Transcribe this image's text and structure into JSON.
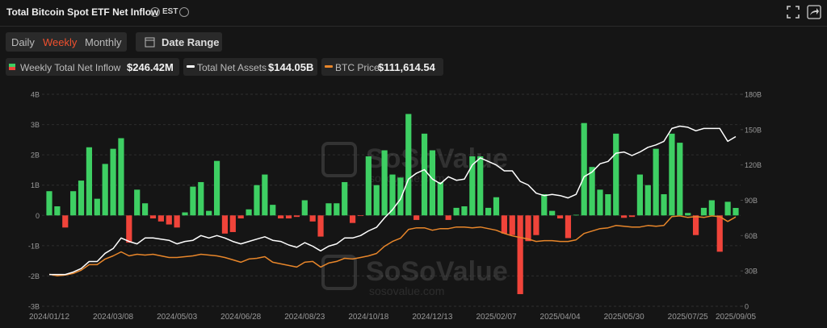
{
  "header": {
    "title": "Total Bitcoin Spot ETF Net Inflow",
    "timezone": "EST",
    "tabs": [
      "Daily",
      "Weekly",
      "Monthly"
    ],
    "active_tab": 1,
    "date_range": "Date Range"
  },
  "chart_data": {
    "type": "bar-line",
    "watermark": "SoSoValue",
    "watermark_url": "sosovalue.com",
    "categories": [
      "2024/01/12",
      null,
      null,
      null,
      null,
      null,
      null,
      null,
      "2024/03/08",
      null,
      null,
      null,
      null,
      null,
      null,
      null,
      "2024/05/03",
      null,
      null,
      null,
      null,
      null,
      null,
      null,
      "2024/06/28",
      null,
      null,
      null,
      null,
      null,
      null,
      null,
      "2024/08/23",
      null,
      null,
      null,
      null,
      null,
      null,
      null,
      "2024/10/18",
      null,
      null,
      null,
      null,
      null,
      null,
      null,
      "2024/12/13",
      null,
      null,
      null,
      null,
      null,
      null,
      null,
      "2025/02/07",
      null,
      null,
      null,
      null,
      null,
      null,
      null,
      "2025/04/04",
      null,
      null,
      null,
      null,
      null,
      null,
      null,
      "2025/05/30",
      null,
      null,
      null,
      null,
      null,
      null,
      null,
      "2025/07/25",
      null,
      null,
      null,
      null,
      null,
      "2025/09/05"
    ],
    "ylim": [
      -3,
      4
    ],
    "yticks": [
      {
        "value": -3,
        "label": "-3B"
      },
      {
        "value": -2,
        "label": "-2B"
      },
      {
        "value": -1,
        "label": "-1B"
      },
      0,
      {
        "value": 1,
        "label": "1B"
      },
      {
        "value": 2,
        "label": "2B"
      },
      {
        "value": 3,
        "label": "3B"
      },
      {
        "value": 4,
        "label": "4B"
      }
    ],
    "y2lim": [
      0,
      180
    ],
    "y2ticks": [
      0,
      {
        "value": 30,
        "label": "30B"
      },
      {
        "value": 60,
        "label": "60B"
      },
      {
        "value": 90,
        "label": "90B"
      },
      {
        "value": 120,
        "label": "120B"
      },
      {
        "value": 150,
        "label": "150B"
      },
      {
        "value": 180,
        "label": "180B"
      }
    ],
    "y3lim": [
      0,
      265000
    ],
    "grid": true,
    "series": [
      {
        "name": "Weekly Total Net Inflow",
        "latest": "$246.42M",
        "type": "bar",
        "color": "#3ecf63",
        "negative_color": "#f0443a",
        "values": [
          0.8,
          0.3,
          -0.4,
          0.8,
          1.15,
          2.25,
          0.55,
          1.7,
          2.2,
          2.55,
          -0.9,
          0.85,
          0.4,
          -0.1,
          -0.2,
          -0.3,
          -0.4,
          0.1,
          0.95,
          1.1,
          0.15,
          1.8,
          -0.6,
          -0.55,
          -0.1,
          0.2,
          1.0,
          1.35,
          0.35,
          -0.1,
          -0.1,
          -0.05,
          0.5,
          -0.2,
          -0.7,
          0.4,
          0.4,
          1.1,
          -0.25,
          -0.02,
          1.95,
          1.0,
          2.15,
          1.35,
          1.25,
          3.35,
          -0.15,
          2.7,
          2.15,
          1.1,
          -0.15,
          0.25,
          0.3,
          1.95,
          1.95,
          0.25,
          0.6,
          -0.6,
          -0.65,
          -2.6,
          -0.85,
          -0.65,
          0.7,
          0.15,
          -0.1,
          -0.75,
          0.02,
          3.05,
          1.6,
          0.85,
          0.7,
          2.7,
          -0.08,
          -0.05,
          1.35,
          1.0,
          2.2,
          0.7,
          2.7,
          2.4,
          0.08,
          -0.65,
          0.25,
          0.5,
          -1.2,
          0.45,
          0.24642
        ]
      },
      {
        "name": "Total Net Assets",
        "latest": "$144.05B",
        "type": "line",
        "axis": "y2",
        "color": "#ffffff",
        "values": [
          27,
          27,
          27,
          29,
          32,
          38,
          38,
          45,
          49,
          58,
          55,
          53,
          58,
          58,
          57,
          56,
          53,
          55,
          56,
          60,
          58,
          60,
          58,
          55,
          53,
          55,
          57,
          59,
          56,
          55,
          52,
          50,
          54,
          51,
          47,
          51,
          53,
          58,
          58,
          60,
          64,
          67,
          75,
          82,
          91,
          108,
          113,
          116,
          108,
          104,
          110,
          107,
          108,
          120,
          126,
          123,
          120,
          115,
          115,
          106,
          103,
          96,
          94,
          95,
          94,
          92,
          95,
          110,
          114,
          121,
          123,
          130,
          131,
          128,
          131,
          135,
          137,
          140,
          151,
          153,
          152,
          149,
          151,
          151,
          151,
          140,
          144.05
        ]
      },
      {
        "name": "BTC Price",
        "latest": "$111,614.54",
        "type": "line",
        "axis": "y3",
        "color": "#e8862a",
        "values": [
          40000,
          38000,
          39000,
          41000,
          45000,
          52000,
          52000,
          59000,
          63000,
          68000,
          63000,
          65000,
          64000,
          65000,
          63000,
          61000,
          61000,
          62000,
          63000,
          65000,
          64000,
          63000,
          61000,
          58000,
          55000,
          59000,
          60000,
          62000,
          55000,
          53000,
          51000,
          49000,
          55000,
          56000,
          49000,
          54000,
          56000,
          60000,
          59000,
          61000,
          63000,
          66000,
          75000,
          81000,
          85000,
          96000,
          98000,
          98000,
          95000,
          97000,
          97000,
          99000,
          99000,
          98000,
          99000,
          97000,
          95000,
          91000,
          88000,
          86000,
          84000,
          81000,
          82000,
          82000,
          81000,
          81000,
          83000,
          91000,
          94000,
          97000,
          98000,
          101000,
          100000,
          99000,
          99000,
          101000,
          100000,
          101000,
          112000,
          113000,
          111000,
          112000,
          111000,
          113000,
          112000,
          106000,
          111614.54
        ]
      }
    ]
  }
}
